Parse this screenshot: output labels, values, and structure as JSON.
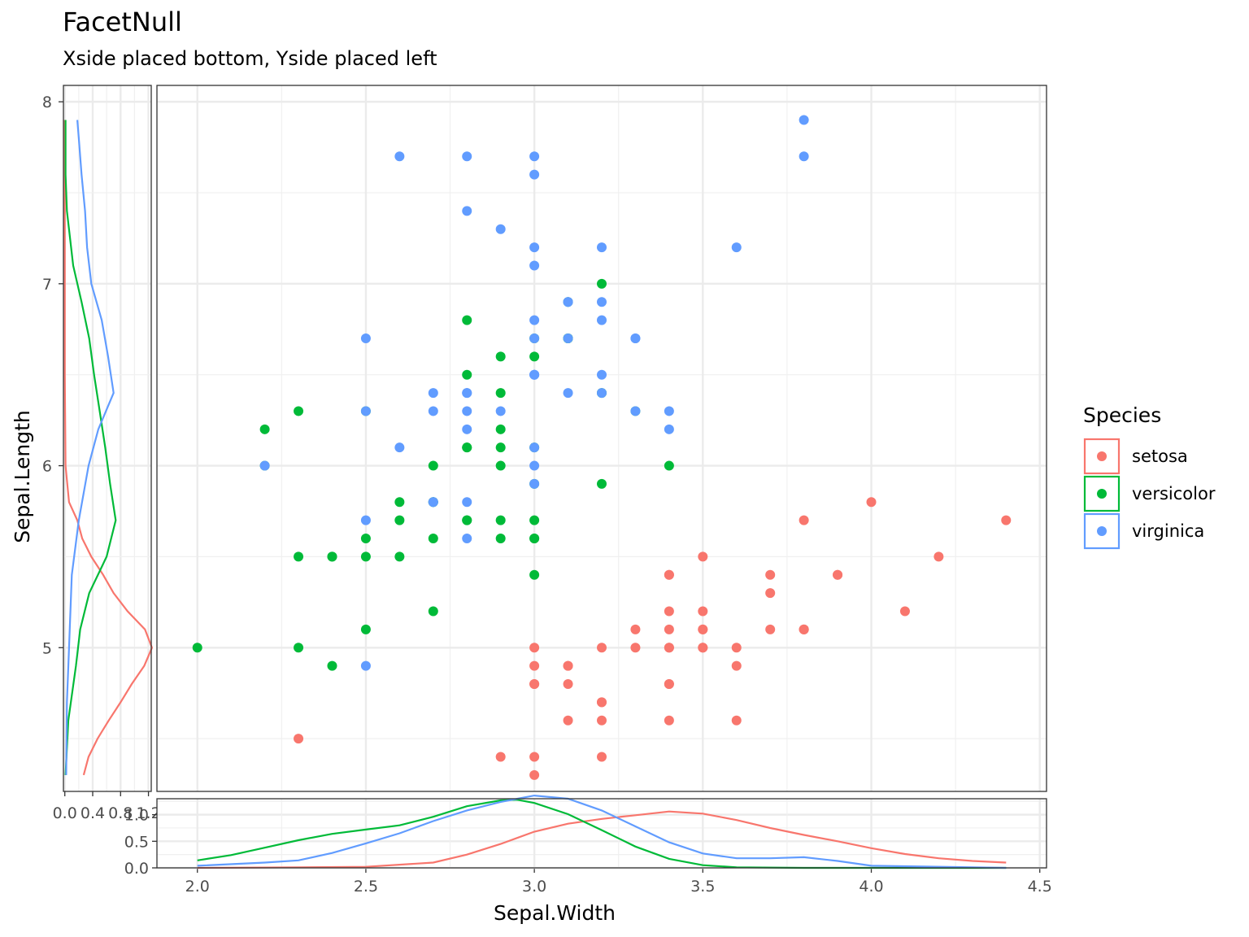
{
  "title": "FacetNull",
  "subtitle": "Xside placed bottom, Yside placed left",
  "colors": {
    "setosa": "#F8766D",
    "versicolor": "#00BA38",
    "virginica": "#619CFF"
  },
  "chart_data": {
    "type": "scatter",
    "title": "FacetNull",
    "subtitle": "Xside placed bottom, Yside placed left",
    "xlabel": "Sepal.Width",
    "ylabel": "Sepal.Length",
    "xlim": [
      2.0,
      4.5
    ],
    "ylim": [
      4.3,
      8.0
    ],
    "x_ticks": [
      "2.0",
      "2.5",
      "3.0",
      "3.5",
      "4.0",
      "4.5"
    ],
    "y_ticks": [
      "5",
      "6",
      "7",
      "8"
    ],
    "grid": true,
    "legend": {
      "title": "Species",
      "position": "right",
      "entries": [
        "setosa",
        "versicolor",
        "virginica"
      ]
    },
    "series": [
      {
        "name": "setosa",
        "color": "#F8766D",
        "points": [
          [
            3.5,
            5.1
          ],
          [
            3.0,
            4.9
          ],
          [
            3.2,
            4.7
          ],
          [
            3.1,
            4.6
          ],
          [
            3.6,
            5.0
          ],
          [
            3.9,
            5.4
          ],
          [
            3.4,
            4.6
          ],
          [
            3.4,
            5.0
          ],
          [
            2.9,
            4.4
          ],
          [
            3.1,
            4.9
          ],
          [
            3.7,
            5.4
          ],
          [
            3.4,
            4.8
          ],
          [
            3.0,
            4.8
          ],
          [
            3.0,
            4.3
          ],
          [
            4.0,
            5.8
          ],
          [
            4.4,
            5.7
          ],
          [
            3.9,
            5.4
          ],
          [
            3.5,
            5.1
          ],
          [
            3.8,
            5.7
          ],
          [
            3.8,
            5.1
          ],
          [
            3.4,
            5.4
          ],
          [
            3.7,
            5.1
          ],
          [
            3.6,
            4.6
          ],
          [
            3.3,
            5.1
          ],
          [
            3.4,
            4.8
          ],
          [
            3.0,
            5.0
          ],
          [
            3.4,
            5.0
          ],
          [
            3.5,
            5.2
          ],
          [
            3.4,
            5.2
          ],
          [
            3.2,
            4.7
          ],
          [
            3.1,
            4.8
          ],
          [
            3.4,
            5.4
          ],
          [
            4.1,
            5.2
          ],
          [
            4.2,
            5.5
          ],
          [
            3.1,
            4.9
          ],
          [
            3.2,
            5.0
          ],
          [
            3.5,
            5.5
          ],
          [
            3.6,
            4.9
          ],
          [
            3.0,
            4.4
          ],
          [
            3.4,
            5.1
          ],
          [
            3.5,
            5.0
          ],
          [
            2.3,
            4.5
          ],
          [
            3.2,
            4.4
          ],
          [
            3.5,
            5.0
          ],
          [
            3.8,
            5.1
          ],
          [
            3.0,
            4.8
          ],
          [
            3.8,
            5.1
          ],
          [
            3.2,
            4.6
          ],
          [
            3.7,
            5.3
          ],
          [
            3.3,
            5.0
          ]
        ]
      },
      {
        "name": "versicolor",
        "color": "#00BA38",
        "points": [
          [
            3.2,
            7.0
          ],
          [
            3.2,
            6.4
          ],
          [
            3.1,
            6.9
          ],
          [
            2.3,
            5.5
          ],
          [
            2.8,
            6.5
          ],
          [
            2.8,
            5.7
          ],
          [
            3.3,
            6.3
          ],
          [
            2.4,
            4.9
          ],
          [
            2.9,
            6.6
          ],
          [
            2.7,
            5.2
          ],
          [
            2.0,
            5.0
          ],
          [
            3.0,
            5.9
          ],
          [
            2.2,
            6.0
          ],
          [
            2.9,
            6.1
          ],
          [
            2.9,
            5.6
          ],
          [
            3.1,
            6.7
          ],
          [
            3.0,
            5.6
          ],
          [
            2.7,
            5.8
          ],
          [
            2.2,
            6.2
          ],
          [
            2.5,
            5.6
          ],
          [
            3.2,
            5.9
          ],
          [
            2.8,
            6.1
          ],
          [
            2.5,
            6.3
          ],
          [
            2.8,
            6.1
          ],
          [
            2.9,
            6.4
          ],
          [
            3.0,
            6.6
          ],
          [
            2.8,
            6.8
          ],
          [
            3.0,
            6.7
          ],
          [
            2.9,
            6.0
          ],
          [
            2.6,
            5.7
          ],
          [
            2.4,
            5.5
          ],
          [
            2.4,
            5.5
          ],
          [
            2.7,
            5.8
          ],
          [
            2.7,
            6.0
          ],
          [
            3.0,
            5.4
          ],
          [
            3.4,
            6.0
          ],
          [
            3.1,
            6.7
          ],
          [
            2.3,
            6.3
          ],
          [
            3.0,
            5.6
          ],
          [
            2.5,
            5.5
          ],
          [
            2.6,
            5.5
          ],
          [
            3.0,
            6.1
          ],
          [
            2.6,
            5.8
          ],
          [
            2.3,
            5.0
          ],
          [
            2.7,
            5.6
          ],
          [
            3.0,
            5.7
          ],
          [
            2.9,
            5.7
          ],
          [
            2.9,
            6.2
          ],
          [
            2.5,
            5.1
          ],
          [
            2.8,
            5.7
          ]
        ]
      },
      {
        "name": "virginica",
        "color": "#619CFF",
        "points": [
          [
            3.3,
            6.3
          ],
          [
            2.7,
            5.8
          ],
          [
            3.0,
            7.1
          ],
          [
            2.9,
            6.3
          ],
          [
            3.0,
            6.5
          ],
          [
            3.0,
            7.6
          ],
          [
            2.5,
            4.9
          ],
          [
            2.9,
            7.3
          ],
          [
            2.5,
            6.7
          ],
          [
            3.6,
            7.2
          ],
          [
            3.2,
            6.5
          ],
          [
            2.7,
            6.4
          ],
          [
            3.0,
            6.8
          ],
          [
            2.5,
            5.7
          ],
          [
            2.8,
            5.8
          ],
          [
            3.2,
            6.4
          ],
          [
            3.0,
            6.5
          ],
          [
            3.8,
            7.7
          ],
          [
            2.6,
            7.7
          ],
          [
            2.2,
            6.0
          ],
          [
            3.2,
            6.9
          ],
          [
            2.8,
            5.6
          ],
          [
            2.8,
            7.7
          ],
          [
            2.7,
            6.3
          ],
          [
            3.3,
            6.7
          ],
          [
            3.2,
            7.2
          ],
          [
            2.8,
            6.2
          ],
          [
            3.0,
            6.1
          ],
          [
            2.8,
            6.4
          ],
          [
            3.0,
            7.2
          ],
          [
            2.8,
            7.4
          ],
          [
            3.8,
            7.9
          ],
          [
            2.8,
            6.4
          ],
          [
            2.8,
            6.3
          ],
          [
            2.6,
            6.1
          ],
          [
            3.0,
            7.7
          ],
          [
            3.4,
            6.3
          ],
          [
            3.1,
            6.4
          ],
          [
            3.0,
            6.0
          ],
          [
            3.1,
            6.9
          ],
          [
            3.1,
            6.7
          ],
          [
            3.1,
            6.9
          ],
          [
            2.7,
            5.8
          ],
          [
            3.2,
            6.8
          ],
          [
            3.3,
            6.7
          ],
          [
            3.0,
            6.7
          ],
          [
            2.5,
            6.3
          ],
          [
            3.0,
            6.5
          ],
          [
            3.4,
            6.2
          ],
          [
            3.0,
            5.9
          ]
        ]
      }
    ],
    "xside_density": {
      "type": "line",
      "xlim": [
        1.88,
        4.52
      ],
      "ylim": [
        0,
        1.3
      ],
      "y_ticks": [
        "0.0",
        "0.5",
        "1.0"
      ],
      "series": [
        {
          "name": "setosa",
          "points": [
            [
              2.0,
              0
            ],
            [
              2.3,
              0.01
            ],
            [
              2.5,
              0.02
            ],
            [
              2.7,
              0.1
            ],
            [
              2.8,
              0.25
            ],
            [
              2.9,
              0.45
            ],
            [
              3.0,
              0.68
            ],
            [
              3.1,
              0.83
            ],
            [
              3.2,
              0.92
            ],
            [
              3.3,
              0.99
            ],
            [
              3.4,
              1.06
            ],
            [
              3.5,
              1.02
            ],
            [
              3.6,
              0.9
            ],
            [
              3.7,
              0.75
            ],
            [
              3.8,
              0.62
            ],
            [
              3.9,
              0.5
            ],
            [
              4.0,
              0.37
            ],
            [
              4.1,
              0.26
            ],
            [
              4.2,
              0.18
            ],
            [
              4.3,
              0.13
            ],
            [
              4.4,
              0.1
            ]
          ]
        },
        {
          "name": "versicolor",
          "points": [
            [
              2.0,
              0.14
            ],
            [
              2.1,
              0.24
            ],
            [
              2.2,
              0.38
            ],
            [
              2.3,
              0.52
            ],
            [
              2.4,
              0.64
            ],
            [
              2.5,
              0.72
            ],
            [
              2.6,
              0.8
            ],
            [
              2.7,
              0.96
            ],
            [
              2.8,
              1.16
            ],
            [
              2.9,
              1.27
            ],
            [
              2.95,
              1.28
            ],
            [
              3.0,
              1.22
            ],
            [
              3.1,
              1.01
            ],
            [
              3.2,
              0.71
            ],
            [
              3.3,
              0.4
            ],
            [
              3.4,
              0.17
            ],
            [
              3.5,
              0.05
            ],
            [
              3.6,
              0.01
            ],
            [
              3.8,
              0
            ],
            [
              4.4,
              0
            ]
          ]
        },
        {
          "name": "virginica",
          "points": [
            [
              2.0,
              0.04
            ],
            [
              2.2,
              0.1
            ],
            [
              2.3,
              0.14
            ],
            [
              2.4,
              0.28
            ],
            [
              2.5,
              0.46
            ],
            [
              2.6,
              0.65
            ],
            [
              2.7,
              0.88
            ],
            [
              2.8,
              1.08
            ],
            [
              2.9,
              1.24
            ],
            [
              3.0,
              1.36
            ],
            [
              3.1,
              1.3
            ],
            [
              3.2,
              1.08
            ],
            [
              3.3,
              0.78
            ],
            [
              3.4,
              0.48
            ],
            [
              3.5,
              0.27
            ],
            [
              3.6,
              0.18
            ],
            [
              3.7,
              0.18
            ],
            [
              3.8,
              0.2
            ],
            [
              3.9,
              0.13
            ],
            [
              4.0,
              0.04
            ],
            [
              4.4,
              0
            ]
          ]
        }
      ]
    },
    "yside_density": {
      "type": "line",
      "xlim": [
        -0.02,
        1.24
      ],
      "x_ticks": [
        "0.0",
        "0.4",
        "0.8",
        "1.2"
      ],
      "series": [
        {
          "name": "setosa",
          "points": [
            [
              4.3,
              0.27
            ],
            [
              4.4,
              0.34
            ],
            [
              4.5,
              0.47
            ],
            [
              4.6,
              0.63
            ],
            [
              4.7,
              0.8
            ],
            [
              4.8,
              0.96
            ],
            [
              4.9,
              1.14
            ],
            [
              5.0,
              1.25
            ],
            [
              5.1,
              1.15
            ],
            [
              5.2,
              0.9
            ],
            [
              5.3,
              0.7
            ],
            [
              5.4,
              0.55
            ],
            [
              5.5,
              0.38
            ],
            [
              5.6,
              0.25
            ],
            [
              5.7,
              0.18
            ],
            [
              5.8,
              0.06
            ],
            [
              6.0,
              0.01
            ],
            [
              6.5,
              0
            ],
            [
              7.9,
              0
            ]
          ]
        },
        {
          "name": "versicolor",
          "points": [
            [
              4.3,
              0.01
            ],
            [
              4.6,
              0.05
            ],
            [
              4.9,
              0.16
            ],
            [
              5.1,
              0.22
            ],
            [
              5.3,
              0.35
            ],
            [
              5.5,
              0.6
            ],
            [
              5.7,
              0.73
            ],
            [
              5.9,
              0.65
            ],
            [
              6.1,
              0.58
            ],
            [
              6.3,
              0.5
            ],
            [
              6.5,
              0.42
            ],
            [
              6.7,
              0.35
            ],
            [
              6.9,
              0.24
            ],
            [
              7.1,
              0.12
            ],
            [
              7.4,
              0.03
            ],
            [
              7.6,
              0.01
            ],
            [
              7.9,
              0.01
            ]
          ]
        },
        {
          "name": "virginica",
          "points": [
            [
              4.3,
              0.02
            ],
            [
              4.7,
              0.03
            ],
            [
              5.0,
              0.06
            ],
            [
              5.4,
              0.1
            ],
            [
              5.7,
              0.2
            ],
            [
              6.0,
              0.34
            ],
            [
              6.2,
              0.48
            ],
            [
              6.4,
              0.7
            ],
            [
              6.6,
              0.62
            ],
            [
              6.8,
              0.53
            ],
            [
              7.0,
              0.38
            ],
            [
              7.2,
              0.32
            ],
            [
              7.4,
              0.29
            ],
            [
              7.6,
              0.24
            ],
            [
              7.8,
              0.2
            ],
            [
              7.9,
              0.18
            ]
          ]
        }
      ]
    }
  }
}
